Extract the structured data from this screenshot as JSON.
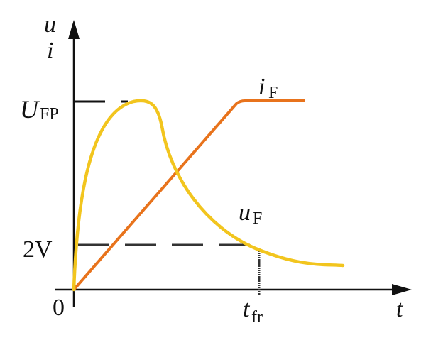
{
  "axes": {
    "y_label_top": "u",
    "y_label_bottom": "i",
    "x_label": "t",
    "origin": "0"
  },
  "levels": {
    "peak_voltage": {
      "symbol": "U",
      "subscript": "FP"
    },
    "threshold_voltage": "2V"
  },
  "time_marker": {
    "symbol": "t",
    "subscript": "fr"
  },
  "curves": {
    "current": {
      "symbol": "i",
      "subscript": "F",
      "color": "#e8731c"
    },
    "voltage": {
      "symbol": "u",
      "subscript": "F",
      "color": "#f2c51e"
    }
  },
  "colors": {
    "axis": "#111111",
    "background": "#ffffff"
  }
}
